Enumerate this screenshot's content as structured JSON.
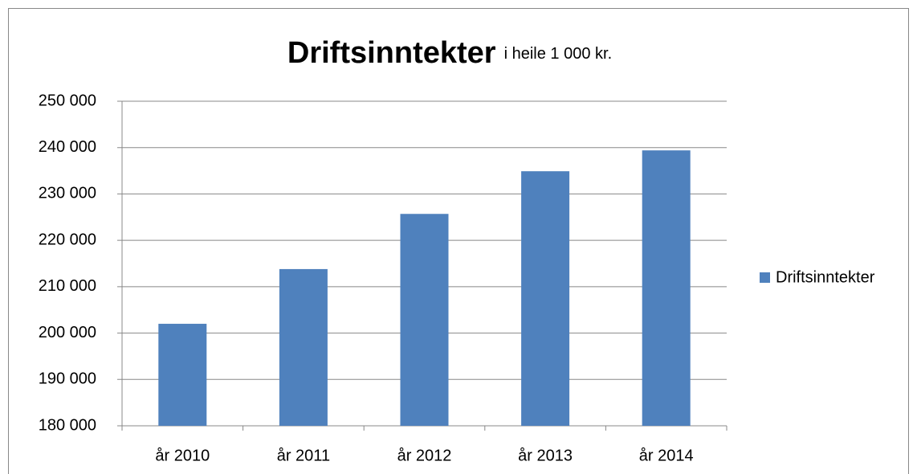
{
  "chart_data": {
    "type": "bar",
    "title": "Driftsinntekter",
    "subtitle": "i heile 1 000 kr.",
    "categories": [
      "år 2010",
      "år 2011",
      "år 2012",
      "år 2013",
      "år 2014"
    ],
    "series": [
      {
        "name": "Driftsinntekter",
        "color": "#4f81bd",
        "values": [
          202000,
          213800,
          225700,
          234900,
          239400
        ]
      }
    ],
    "ylim": [
      180000,
      250000
    ],
    "yticks": [
      {
        "value": 180000,
        "label": "180 000"
      },
      {
        "value": 190000,
        "label": "190 000"
      },
      {
        "value": 200000,
        "label": "200 000"
      },
      {
        "value": 210000,
        "label": "210 000"
      },
      {
        "value": 220000,
        "label": "220 000"
      },
      {
        "value": 230000,
        "label": "230 000"
      },
      {
        "value": 240000,
        "label": "240 000"
      },
      {
        "value": 250000,
        "label": "250 000"
      }
    ],
    "grid": true,
    "legend": "right"
  }
}
